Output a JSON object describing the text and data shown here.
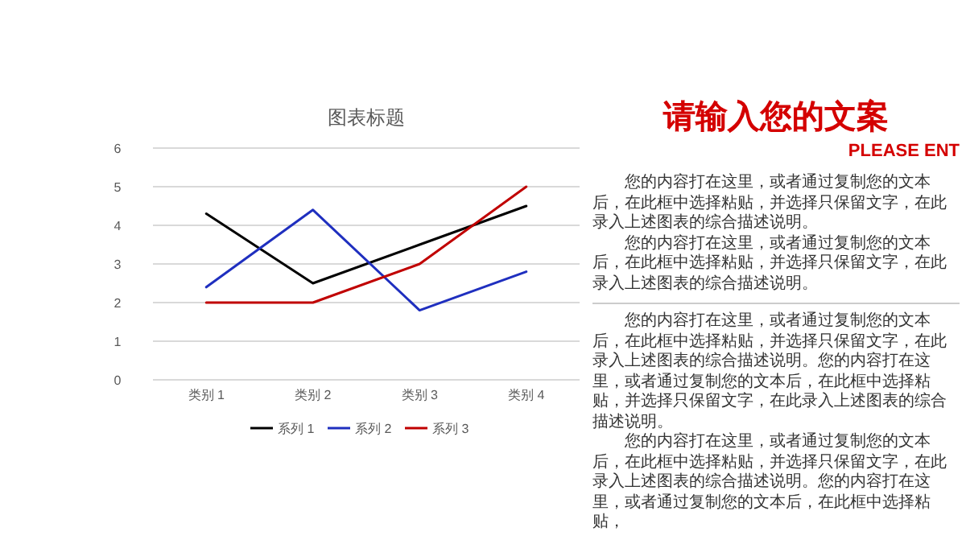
{
  "chart_data": [
    {
      "type": "line",
      "title": "图表标题",
      "categories": [
        "类别 1",
        "类别 2",
        "类别 3",
        "类别 4"
      ],
      "series": [
        {
          "name": "系列 1",
          "color": "#000000",
          "values": [
            4.3,
            2.5,
            3.5,
            4.5
          ]
        },
        {
          "name": "系列 2",
          "color": "#1f2fbf",
          "values": [
            2.4,
            4.4,
            1.8,
            2.8
          ]
        },
        {
          "name": "系列 3",
          "color": "#c00000",
          "values": [
            2,
            2,
            3,
            5
          ]
        }
      ],
      "ylim": [
        0,
        6
      ],
      "yticks": [
        0,
        1,
        2,
        3,
        4,
        5,
        6
      ],
      "grid": "y",
      "legend": "bottom",
      "marker": "none",
      "line_style": "solid"
    },
    {
      "type": "other",
      "title": "请输入您的文案",
      "subtitle": "PLEASE ENT",
      "annotations": [
        "您的内容打在这里，或者通过复制您的文本后，在此框中选择粘贴，并选择只保留文字，在此录入上述图表的综合描述说明。",
        "您的内容打在这里，或者通过复制您的文本后，在此框中选择粘贴，并选择只保留文字，在此录入上述图表的综合描述说明。",
        "您的内容打在这里，或者通过复制您的文本后，在此框中选择粘贴，并选择只保留文字，在此录入上述图表的综合描述说明。您的内容打在这里，或者通过复制您的文本后，在此框中选择粘贴，并选择只保留文字，在此录入上述图表的综合描述说明。",
        "您的内容打在这里，或者通过复制您的文本后，在此框中选择粘贴，并选择只保留文字，在此录入上述图表的综合描述说明。您的内容打在这里，或者通过复制您的文本后，在此框中选择粘贴，"
      ]
    }
  ]
}
